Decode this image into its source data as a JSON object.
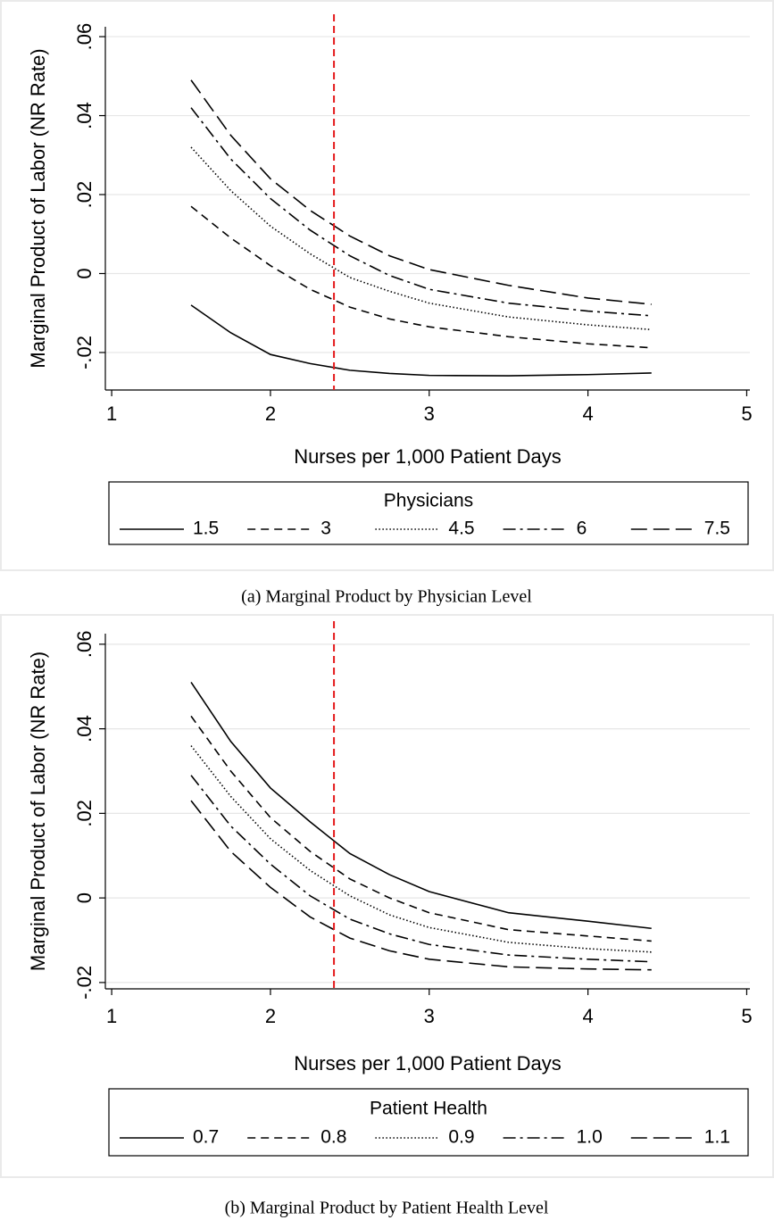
{
  "chart_data": [
    {
      "type": "line",
      "y_label": "Marginal Product of Labor (NR Rate)",
      "x_label": "Nurses per 1,000 Patient Days",
      "legend_title": "Physicians",
      "caption": "(a) Marginal Product by Physician Level",
      "x": [
        1.5,
        1.75,
        2,
        2.25,
        2.5,
        2.75,
        3,
        3.5,
        4,
        4.4
      ],
      "series": [
        {
          "name": "1.5",
          "color": "#000000",
          "dash": "solid",
          "values": [
            -0.008,
            -0.015,
            -0.0205,
            -0.0228,
            -0.0245,
            -0.0253,
            -0.0258,
            -0.0259,
            -0.0256,
            -0.0252
          ]
        },
        {
          "name": "3",
          "color": "#000000",
          "dash": "dashed",
          "values": [
            0.017,
            0.009,
            0.002,
            -0.004,
            -0.0085,
            -0.0115,
            -0.0135,
            -0.016,
            -0.0178,
            -0.0188
          ]
        },
        {
          "name": "4.5",
          "color": "#000000",
          "dash": "dotted",
          "values": [
            0.032,
            0.021,
            0.012,
            0.005,
            -0.001,
            -0.0045,
            -0.0075,
            -0.011,
            -0.013,
            -0.0142
          ]
        },
        {
          "name": "6",
          "color": "#000000",
          "dash": "dashdot",
          "values": [
            0.042,
            0.029,
            0.019,
            0.011,
            0.0045,
            -0.0005,
            -0.004,
            -0.0075,
            -0.0095,
            -0.0107
          ]
        },
        {
          "name": "7.5",
          "color": "#000000",
          "dash": "longdash",
          "values": [
            0.049,
            0.035,
            0.024,
            0.016,
            0.0095,
            0.0045,
            0.001,
            -0.003,
            -0.0062,
            -0.0078
          ]
        }
      ],
      "vline": 2.4,
      "vline_color": "#e41a1c",
      "xlim": [
        0.96,
        5.02
      ],
      "xticks": [
        1,
        2,
        3,
        4,
        5
      ],
      "ylim": [
        -0.0295,
        0.0625
      ],
      "yticks": [
        {
          "value": -0.02,
          "label": "-.02"
        },
        0,
        {
          "value": 0.02,
          "label": ".02"
        },
        {
          "value": 0.04,
          "label": ".04"
        },
        {
          "value": 0.06,
          "label": ".06"
        }
      ],
      "grid": true
    },
    {
      "type": "line",
      "y_label": "Marginal Product of Labor (NR Rate)",
      "x_label": "Nurses per 1,000 Patient Days",
      "legend_title": "Patient Health",
      "caption": "(b) Marginal Product by Patient Health Level",
      "x": [
        1.5,
        1.75,
        2,
        2.25,
        2.5,
        2.75,
        3,
        3.5,
        4,
        4.4
      ],
      "series": [
        {
          "name": "0.7",
          "color": "#000000",
          "dash": "solid",
          "values": [
            0.051,
            0.037,
            0.026,
            0.018,
            0.0105,
            0.0055,
            0.0015,
            -0.0035,
            -0.0055,
            -0.0072
          ]
        },
        {
          "name": "0.8",
          "color": "#000000",
          "dash": "dashed",
          "values": [
            0.043,
            0.03,
            0.019,
            0.011,
            0.0045,
            0.0,
            -0.0035,
            -0.0075,
            -0.009,
            -0.0102
          ]
        },
        {
          "name": "0.9",
          "color": "#000000",
          "dash": "dotted",
          "values": [
            0.036,
            0.024,
            0.014,
            0.0065,
            0.0005,
            -0.004,
            -0.007,
            -0.0105,
            -0.012,
            -0.0128
          ]
        },
        {
          "name": "1.0",
          "color": "#000000",
          "dash": "dashdot",
          "values": [
            0.029,
            0.017,
            0.008,
            0.0005,
            -0.005,
            -0.0085,
            -0.011,
            -0.0135,
            -0.0145,
            -0.0151
          ]
        },
        {
          "name": "1.1",
          "color": "#000000",
          "dash": "longdash",
          "values": [
            0.023,
            0.011,
            0.0025,
            -0.0045,
            -0.0095,
            -0.0125,
            -0.0145,
            -0.0163,
            -0.0168,
            -0.017
          ]
        }
      ],
      "vline": 2.4,
      "vline_color": "#e41a1c",
      "xlim": [
        0.96,
        5.02
      ],
      "xticks": [
        1,
        2,
        3,
        4,
        5
      ],
      "ylim": [
        -0.0215,
        0.0625
      ],
      "yticks": [
        {
          "value": -0.02,
          "label": "-.02"
        },
        0,
        {
          "value": 0.02,
          "label": ".02"
        },
        {
          "value": 0.04,
          "label": ".04"
        },
        {
          "value": 0.06,
          "label": ".06"
        }
      ],
      "grid": true
    }
  ]
}
